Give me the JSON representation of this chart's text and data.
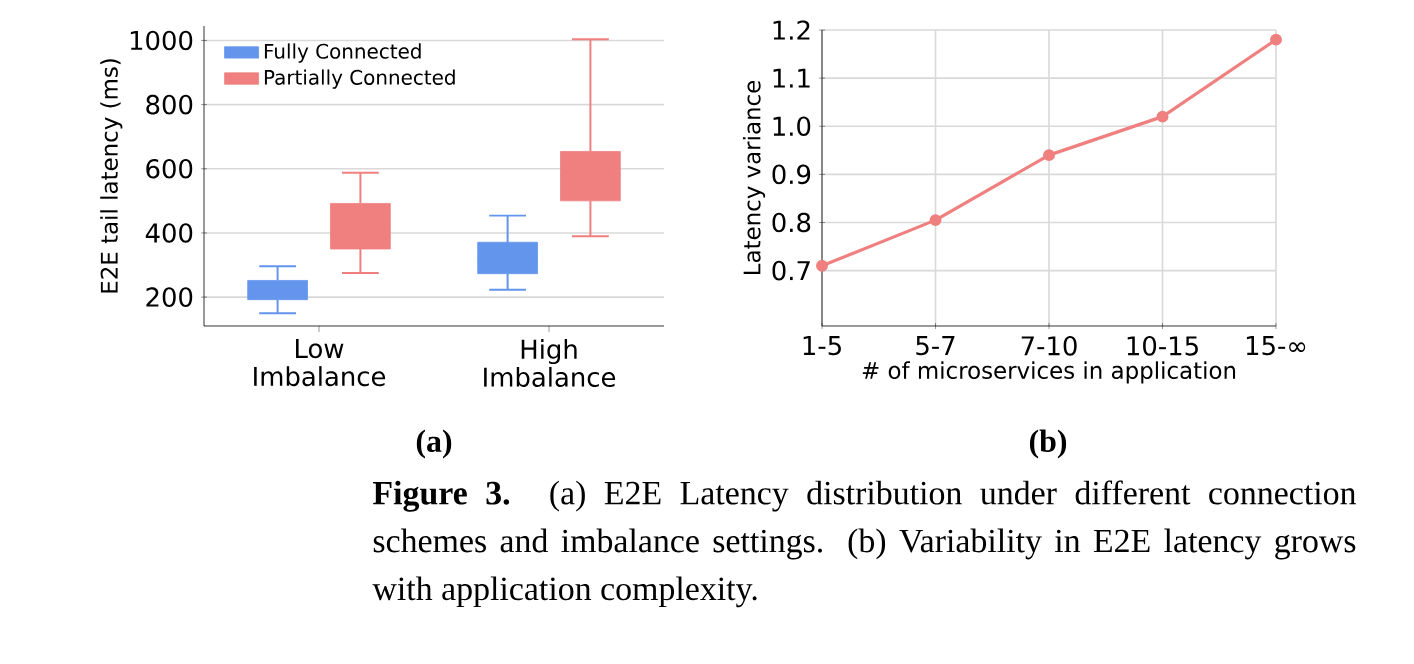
{
  "chart_data": [
    {
      "type": "box",
      "ylabel": "E2E tail latency (ms)",
      "categories": [
        "Low Imbalance",
        "High Imbalance"
      ],
      "series": [
        {
          "name": "Fully Connected",
          "color": "#6495ed",
          "boxes": [
            {
              "low": 150,
              "q1": 192,
              "median": 220,
              "q3": 252,
              "high": 296
            },
            {
              "low": 223,
              "q1": 273,
              "median": 320,
              "q3": 371,
              "high": 454
            }
          ]
        },
        {
          "name": "Partially Connected",
          "color": "#f08080",
          "boxes": [
            {
              "low": 275,
              "q1": 350,
              "median": 420,
              "q3": 492,
              "high": 588
            },
            {
              "low": 390,
              "q1": 500,
              "median": 580,
              "q3": 654,
              "high": 1004
            }
          ]
        }
      ],
      "ylim": [
        110,
        1045
      ],
      "yticks": [
        200,
        400,
        600,
        800,
        1000
      ],
      "grid": "y",
      "legend": "top left",
      "annotations": [
        "(a)"
      ]
    },
    {
      "type": "line",
      "xlabel": "# of microservices in application",
      "ylabel": "Latency variance",
      "categories": [
        "1-5",
        "5-7",
        "7-10",
        "10-15",
        "15-∞"
      ],
      "series": [
        {
          "color": "#f08080",
          "values": [
            0.71,
            0.805,
            0.94,
            1.02,
            1.18
          ]
        }
      ],
      "ylim": [
        0.585,
        1.2
      ],
      "yticks": [
        0.7,
        0.8,
        0.9,
        {
          "value": 1.0,
          "label": "1.0"
        },
        1.1,
        1.2
      ],
      "grid": true,
      "marker": "circle",
      "annotations": [
        "(b)",
        "**Figure 3.** (a) E2E Latency distribution under different connection schemes and imbalance settings. (b) Variability in E2E latency grows with application complexity."
      ]
    }
  ]
}
